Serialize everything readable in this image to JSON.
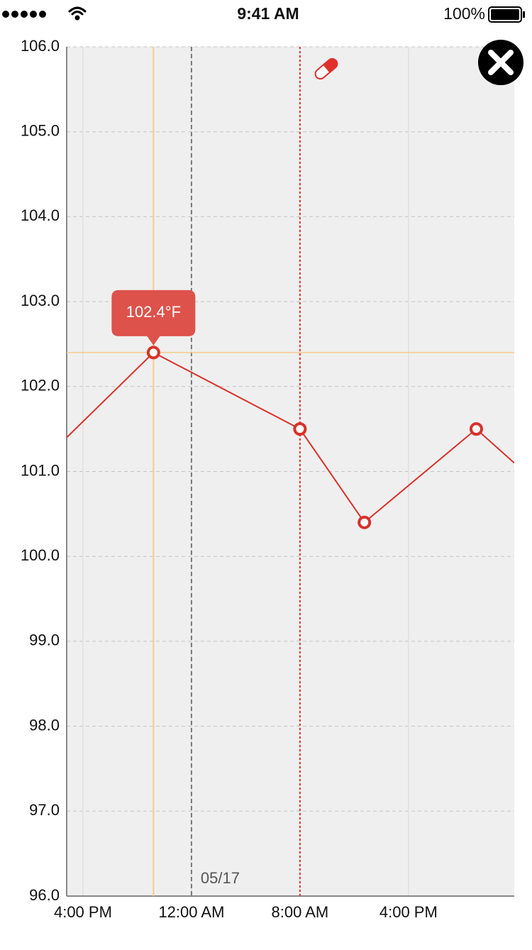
{
  "status_bar": {
    "time": "9:41 AM",
    "battery": "100%"
  },
  "chart_data": {
    "type": "line",
    "x": [
      14.8,
      21.2,
      32,
      36.75,
      45,
      47.8
    ],
    "values": [
      101.4,
      102.4,
      101.5,
      100.4,
      101.5,
      101.1
    ],
    "color": "#d7312a",
    "xlim": [
      14.8,
      47.8
    ],
    "xticks": [
      {
        "value": 16,
        "label": "4:00 PM"
      },
      {
        "value": 24,
        "label": "12:00 AM"
      },
      {
        "value": 32,
        "label": "8:00 AM"
      },
      {
        "value": 40,
        "label": "4:00 PM"
      }
    ],
    "ylim": [
      96,
      106
    ],
    "yticks": [
      {
        "value": 96,
        "label": "96.0"
      },
      {
        "value": 97,
        "label": "97.0"
      },
      {
        "value": 98,
        "label": "98.0"
      },
      {
        "value": 99,
        "label": "99.0"
      },
      {
        "value": 100,
        "label": "100.0"
      },
      {
        "value": 101,
        "label": "101.0"
      },
      {
        "value": 102,
        "label": "102.0"
      },
      {
        "value": 103,
        "label": "103.0"
      },
      {
        "value": 104,
        "label": "104.0"
      },
      {
        "value": 105,
        "label": "105.0"
      },
      {
        "value": 106,
        "label": "106.0"
      }
    ],
    "grid": true,
    "annotations": [
      {
        "x": 24,
        "label": "05/17"
      }
    ],
    "events": [
      {
        "x": 32,
        "color": "#e0302a"
      }
    ],
    "tooltip": {
      "index": 1,
      "label": "102.4°F",
      "color": "#dd524b"
    },
    "crosshair_color": "#f7c98a"
  }
}
